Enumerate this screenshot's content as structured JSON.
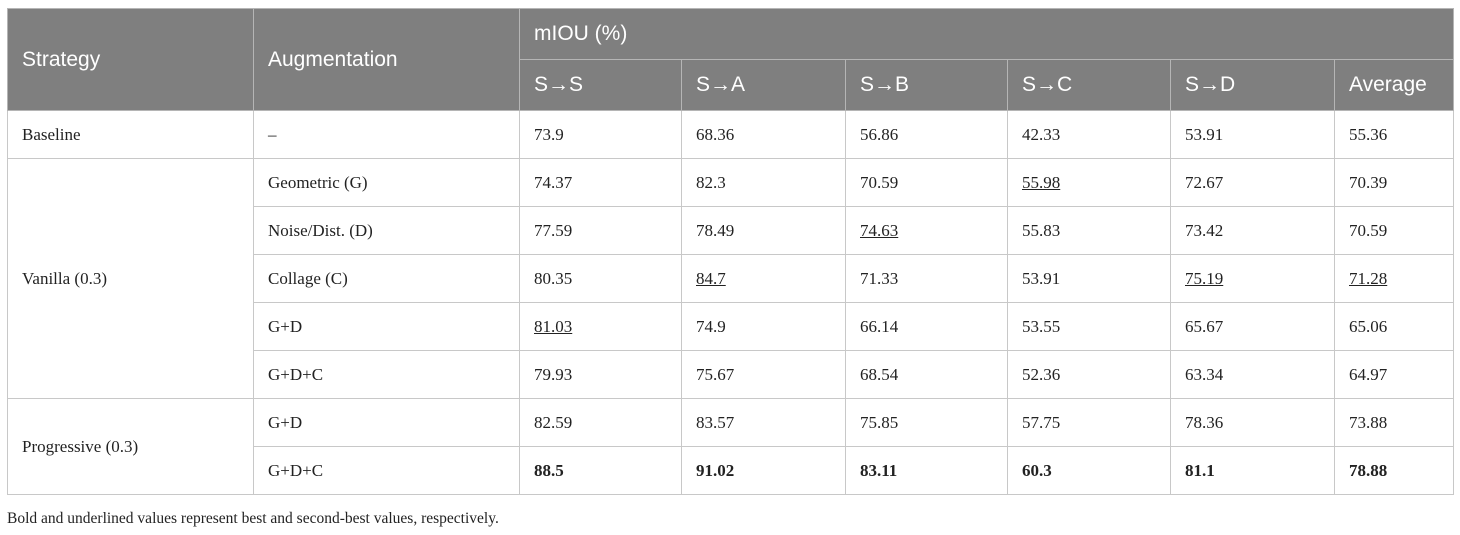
{
  "table": {
    "header": {
      "strategy": "Strategy",
      "augmentation": "Augmentation",
      "metric": "mIOU (%)",
      "columns": [
        "S→S",
        "S→A",
        "S→B",
        "S→C",
        "S→D",
        "Average"
      ]
    },
    "groups": [
      {
        "strategy": "Baseline",
        "rows": [
          {
            "augmentation": "–",
            "values": [
              "73.9",
              "68.36",
              "56.86",
              "42.33",
              "53.91",
              "55.36"
            ]
          }
        ]
      },
      {
        "strategy": "Vanilla (0.3)",
        "rows": [
          {
            "augmentation": "Geometric (G)",
            "values": [
              "74.37",
              "82.3",
              "70.59",
              "55.98",
              "72.67",
              "70.39"
            ]
          },
          {
            "augmentation": "Noise/Dist. (D)",
            "values": [
              "77.59",
              "78.49",
              "74.63",
              "55.83",
              "73.42",
              "70.59"
            ]
          },
          {
            "augmentation": "Collage (C)",
            "values": [
              "80.35",
              "84.7",
              "71.33",
              "53.91",
              "75.19",
              "71.28"
            ]
          },
          {
            "augmentation": "G+D",
            "values": [
              "81.03",
              "74.9",
              "66.14",
              "53.55",
              "65.67",
              "65.06"
            ]
          },
          {
            "augmentation": "G+D+C",
            "values": [
              "79.93",
              "75.67",
              "68.54",
              "52.36",
              "63.34",
              "64.97"
            ]
          }
        ]
      },
      {
        "strategy": "Progressive (0.3)",
        "rows": [
          {
            "augmentation": "G+D",
            "values": [
              "82.59",
              "83.57",
              "75.85",
              "57.75",
              "78.36",
              "73.88"
            ]
          },
          {
            "augmentation": "G+D+C",
            "values": [
              "88.5",
              "91.02",
              "83.11",
              "60.3",
              "81.1",
              "78.88"
            ]
          }
        ]
      }
    ]
  },
  "footnote": "Bold and underlined values represent best and second-best values, respectively."
}
